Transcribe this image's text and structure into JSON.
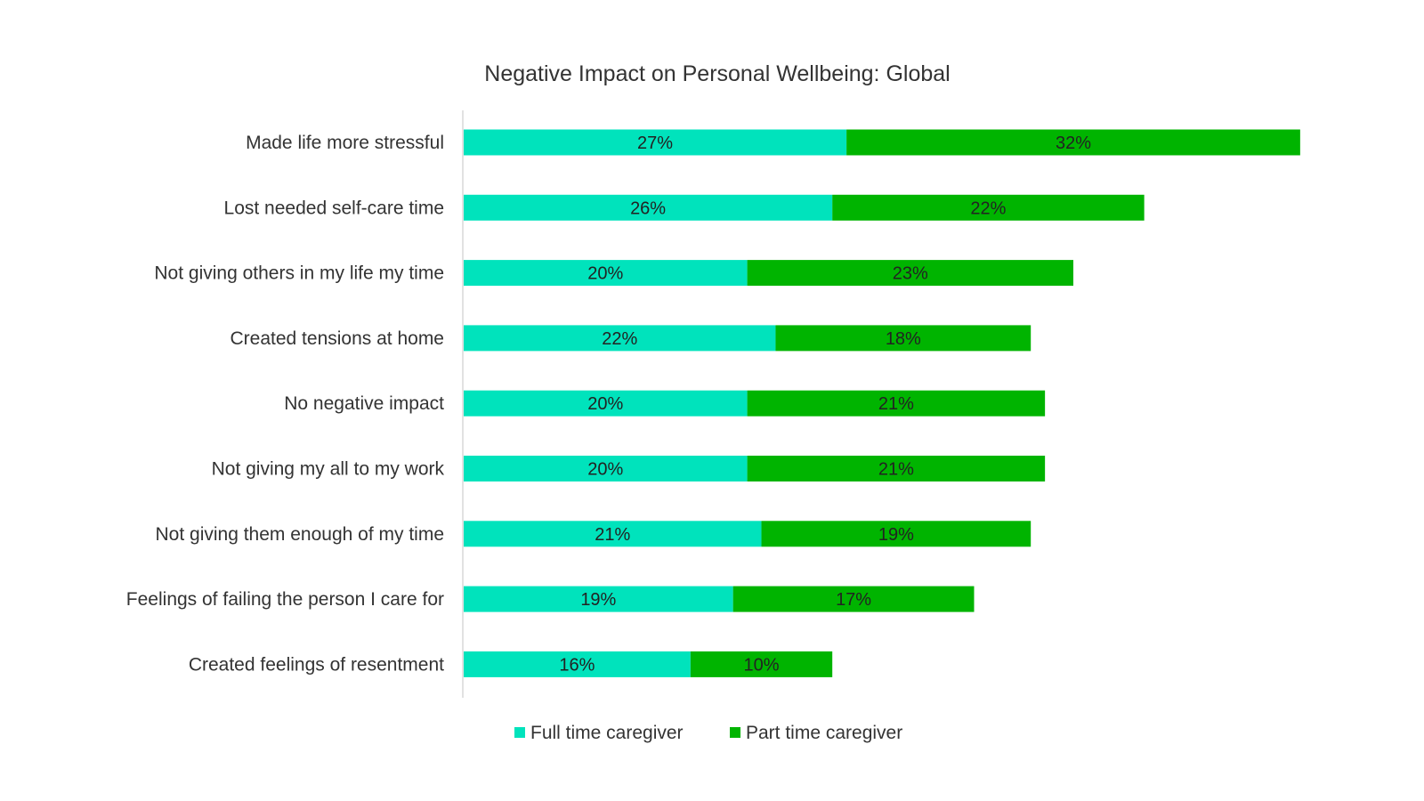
{
  "chart_data": {
    "type": "bar",
    "orientation": "horizontal",
    "stacked": true,
    "title": "Negative Impact on Personal Wellbeing: Global",
    "xlabel": "",
    "ylabel": "",
    "xlim": [
      0,
      60
    ],
    "grid": false,
    "legend_position": "bottom",
    "categories": [
      "Made life more stressful",
      "Lost needed self-care time",
      "Not giving others in my life my time",
      "Created tensions at home",
      "No negative impact",
      "Not giving my all to my work",
      "Not giving them enough of my time",
      "Feelings of failing the person I care for",
      "Created feelings of resentment"
    ],
    "series": [
      {
        "name": "Full time caregiver",
        "color": "#00E3BC",
        "values": [
          27,
          26,
          20,
          22,
          20,
          20,
          21,
          19,
          16
        ],
        "labels": [
          "27%",
          "26%",
          "20%",
          "22%",
          "20%",
          "20%",
          "21%",
          "19%",
          "16%"
        ]
      },
      {
        "name": "Part time caregiver",
        "color": "#00B400",
        "values": [
          32,
          22,
          23,
          18,
          21,
          21,
          19,
          17,
          10
        ],
        "labels": [
          "32%",
          "22%",
          "23%",
          "18%",
          "21%",
          "21%",
          "19%",
          "17%",
          "10%"
        ]
      }
    ]
  }
}
